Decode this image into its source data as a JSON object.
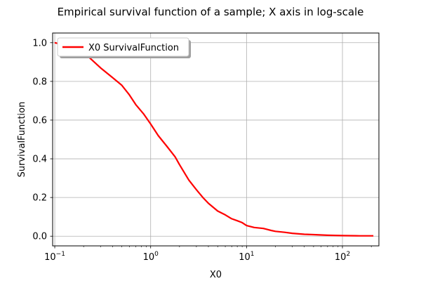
{
  "chart_data": {
    "type": "line",
    "title": "Empirical survival function of a sample; X axis in log-scale",
    "xlabel": "X0",
    "ylabel": "SurvivalFunction",
    "x_scale": "log",
    "xlim": [
      0.095,
      240
    ],
    "ylim": [
      -0.05,
      1.05
    ],
    "grid": true,
    "legend_position": "top-left",
    "x_ticks": [
      {
        "value": 0.1,
        "base": "10",
        "exp": "−1"
      },
      {
        "value": 1,
        "base": "10",
        "exp": "0"
      },
      {
        "value": 10,
        "base": "10",
        "exp": "1"
      },
      {
        "value": 100,
        "base": "10",
        "exp": "2"
      }
    ],
    "y_ticks": [
      {
        "value": 0.0,
        "label": "0.0"
      },
      {
        "value": 0.2,
        "label": "0.2"
      },
      {
        "value": 0.4,
        "label": "0.4"
      },
      {
        "value": 0.6,
        "label": "0.6"
      },
      {
        "value": 0.8,
        "label": "0.8"
      },
      {
        "value": 1.0,
        "label": "1.0"
      }
    ],
    "series": [
      {
        "name": "X0 SurvivalFunction",
        "color": "#ff0000",
        "x": [
          0.1,
          0.15,
          0.2,
          0.3,
          0.4,
          0.5,
          0.6,
          0.7,
          0.85,
          1.0,
          1.2,
          1.5,
          1.8,
          2.0,
          2.5,
          3.0,
          3.5,
          4.0,
          5.0,
          6.0,
          7.0,
          8.0,
          9.0,
          10,
          12,
          15,
          18,
          20,
          25,
          30,
          40,
          50,
          70,
          100,
          150,
          210
        ],
        "y": [
          1.0,
          0.98,
          0.95,
          0.87,
          0.82,
          0.78,
          0.73,
          0.68,
          0.63,
          0.58,
          0.52,
          0.46,
          0.41,
          0.37,
          0.29,
          0.24,
          0.2,
          0.17,
          0.13,
          0.11,
          0.09,
          0.08,
          0.07,
          0.055,
          0.045,
          0.04,
          0.03,
          0.025,
          0.02,
          0.015,
          0.01,
          0.008,
          0.005,
          0.003,
          0.002,
          0.002
        ]
      }
    ]
  }
}
